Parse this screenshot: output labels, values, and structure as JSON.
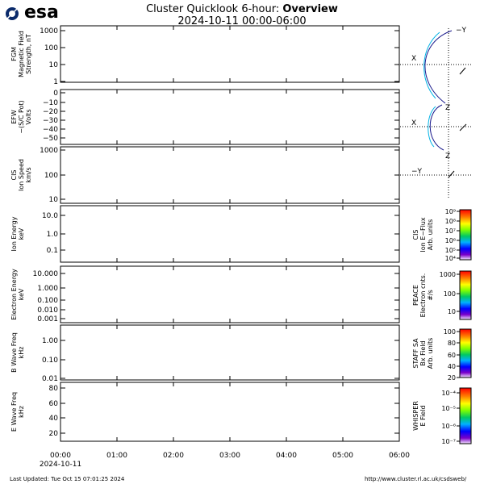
{
  "header": {
    "logo_text": "esa",
    "title_line1_prefix": "Cluster Quicklook 6-hour: ",
    "title_line1_bold": "Overview",
    "title_line2": "2024-10-11 00:00-06:00"
  },
  "footer": {
    "last_updated": "Last Updated:  Tue Oct 15 07:01:25 2024",
    "url": "http://www.cluster.rl.ac.uk/csdsweb/"
  },
  "colors": {
    "axis": "#000000",
    "dotted": "#000000",
    "orbit_inner": "#00b3e6",
    "orbit_outer": "#1a1a8c"
  },
  "chart_data": [
    {
      "id": "fgm",
      "type": "line",
      "ylabel": [
        "FGM",
        "Magnetic Field",
        "Strength, nT"
      ],
      "scale": "log",
      "yticks": [
        "1000",
        "100",
        "10",
        "1"
      ],
      "series": []
    },
    {
      "id": "efw",
      "type": "line",
      "ylabel": [
        "EFW",
        "−(S/C Pot)",
        "Volts"
      ],
      "scale": "linear",
      "yticks": [
        "0",
        "−10",
        "−20",
        "−30",
        "−40",
        "−50"
      ],
      "series": []
    },
    {
      "id": "cis_speed",
      "type": "line",
      "ylabel": [
        "CIS",
        "Ion Speed",
        "km/s"
      ],
      "scale": "log",
      "yticks": [
        "1000",
        "100",
        "10"
      ],
      "series": []
    },
    {
      "id": "cis_energy",
      "type": "heatmap",
      "ylabel": [
        "Ion Energy",
        "keV"
      ],
      "scale": "log",
      "yticks": [
        "10.0",
        "1.0",
        "0.1"
      ],
      "colorbar": {
        "label": [
          "CIS",
          "Ion E−Flux",
          "Arb. units"
        ],
        "ticks": [
          "10⁹",
          "10⁸",
          "10⁷",
          "10⁶",
          "10⁵",
          "10⁴"
        ]
      }
    },
    {
      "id": "peace",
      "type": "heatmap",
      "ylabel": [
        "Electron Energy",
        "keV"
      ],
      "scale": "log",
      "yticks": [
        "10.000",
        "1.000",
        "0.100",
        "0.010",
        "0.001"
      ],
      "colorbar": {
        "label": [
          "PEACE",
          "Electron cnts.",
          "#/s"
        ],
        "ticks": [
          "1000",
          "100",
          "10"
        ]
      }
    },
    {
      "id": "staff",
      "type": "heatmap",
      "ylabel": [
        "B Wave Freq",
        "kHz"
      ],
      "scale": "log",
      "yticks": [
        "1.00",
        "0.10",
        "0.01"
      ],
      "colorbar": {
        "label": [
          "STAFF SA",
          "Bx Field",
          "Arb. units"
        ],
        "ticks": [
          "100",
          "80",
          "60",
          "40",
          "20"
        ]
      }
    },
    {
      "id": "whisper",
      "type": "heatmap",
      "ylabel": [
        "E Wave Freq",
        "kHz"
      ],
      "scale": "linear",
      "yticks": [
        "80",
        "60",
        "40",
        "20"
      ],
      "colorbar": {
        "label": [
          "WHISPER",
          "E Field"
        ],
        "ticks": [
          "10⁻⁴",
          "10⁻⁵",
          "10⁻⁶",
          "10⁻⁷"
        ]
      }
    }
  ],
  "time_axis": {
    "ticks": [
      "00:00",
      "01:00",
      "02:00",
      "03:00",
      "04:00",
      "05:00",
      "06:00"
    ],
    "date_label": "2024-10-11"
  },
  "orbit": {
    "plot1": {
      "top_label": "−Y",
      "side_label": "X"
    },
    "plot2": {
      "top_label": "Z",
      "side_label": "X"
    },
    "plot3": {
      "top_label": "Z",
      "side_label": "−Y"
    }
  }
}
